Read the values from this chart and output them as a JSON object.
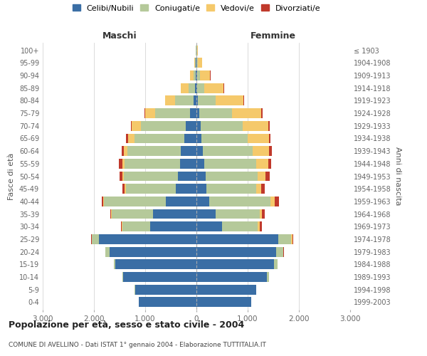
{
  "age_groups": [
    "0-4",
    "5-9",
    "10-14",
    "15-19",
    "20-24",
    "25-29",
    "30-34",
    "35-39",
    "40-44",
    "45-49",
    "50-54",
    "55-59",
    "60-64",
    "65-69",
    "70-74",
    "75-79",
    "80-84",
    "85-89",
    "90-94",
    "95-99",
    "100+"
  ],
  "birth_years": [
    "1999-2003",
    "1994-1998",
    "1989-1993",
    "1984-1988",
    "1979-1983",
    "1974-1978",
    "1969-1973",
    "1964-1968",
    "1959-1963",
    "1954-1958",
    "1949-1953",
    "1944-1948",
    "1939-1943",
    "1934-1938",
    "1929-1933",
    "1924-1928",
    "1919-1923",
    "1914-1918",
    "1909-1913",
    "1904-1908",
    "≤ 1903"
  ],
  "maschi": {
    "celibi": [
      1120,
      1200,
      1430,
      1580,
      1700,
      1900,
      900,
      850,
      600,
      400,
      360,
      320,
      300,
      230,
      210,
      130,
      60,
      30,
      20,
      10,
      5
    ],
    "coniugati": [
      5,
      5,
      20,
      30,
      80,
      140,
      550,
      800,
      1200,
      980,
      1050,
      1080,
      1050,
      980,
      870,
      670,
      350,
      120,
      40,
      15,
      5
    ],
    "vedovi": [
      0,
      0,
      0,
      1,
      2,
      5,
      5,
      10,
      15,
      20,
      30,
      50,
      70,
      130,
      180,
      200,
      200,
      150,
      60,
      20,
      5
    ],
    "divorziati": [
      0,
      0,
      0,
      1,
      2,
      5,
      15,
      20,
      30,
      50,
      60,
      60,
      40,
      30,
      20,
      10,
      8,
      5,
      2,
      0,
      0
    ]
  },
  "femmine": {
    "nubili": [
      1070,
      1160,
      1380,
      1520,
      1550,
      1600,
      500,
      380,
      250,
      200,
      180,
      150,
      120,
      100,
      90,
      60,
      30,
      20,
      10,
      5,
      5
    ],
    "coniugate": [
      5,
      10,
      30,
      60,
      140,
      250,
      700,
      850,
      1200,
      960,
      1020,
      1020,
      980,
      900,
      810,
      630,
      340,
      130,
      60,
      20,
      5
    ],
    "vedove": [
      0,
      1,
      2,
      5,
      10,
      20,
      30,
      50,
      80,
      100,
      150,
      230,
      320,
      420,
      500,
      580,
      550,
      380,
      200,
      80,
      20
    ],
    "divorziate": [
      0,
      0,
      0,
      5,
      10,
      25,
      50,
      60,
      80,
      80,
      80,
      60,
      50,
      30,
      25,
      15,
      10,
      5,
      2,
      0,
      0
    ]
  },
  "colors": {
    "celibi": "#3a6ea5",
    "coniugati": "#b5c99a",
    "vedovi": "#f5c96b",
    "divorziati": "#c0392b"
  },
  "title": "Popolazione per età, sesso e stato civile - 2004",
  "subtitle": "COMUNE DI AVELLINO - Dati ISTAT 1° gennaio 2004 - Elaborazione TUTTITALIA.IT",
  "ylabel": "Fasce di età",
  "ylabel_right": "Anni di nascita",
  "xlim": 3000,
  "xlabel_left": "Maschi",
  "xlabel_right": "Femmine",
  "legend_labels": [
    "Celibi/Nubili",
    "Coniugati/e",
    "Vedovi/e",
    "Divorziati/e"
  ],
  "background_color": "#ffffff"
}
